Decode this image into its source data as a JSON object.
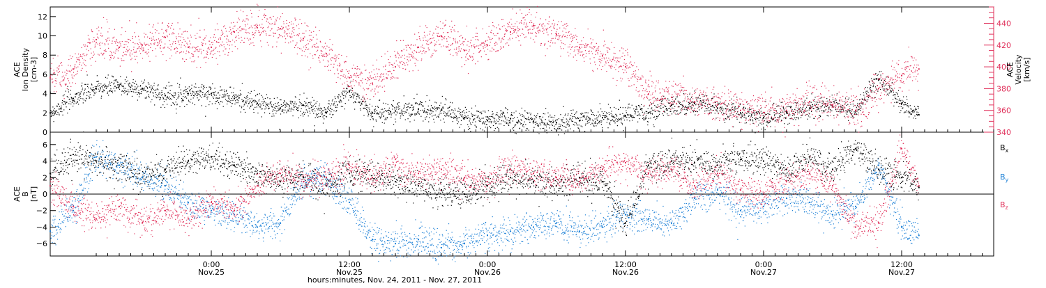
{
  "colors": {
    "black": "#000000",
    "red": "#e0305a",
    "blue": "#1a7fd6",
    "axis": "#000000"
  },
  "time_axis": {
    "start": "2011-11-24T10:00",
    "end": "2011-11-27T20:00",
    "ticks": [
      {
        "time": "2011-11-25T00:00",
        "hm": "0:00",
        "day": "Nov.25"
      },
      {
        "time": "2011-11-25T12:00",
        "hm": "12:00",
        "day": "Nov.25"
      },
      {
        "time": "2011-11-26T00:00",
        "hm": "0:00",
        "day": "Nov.26"
      },
      {
        "time": "2011-11-26T12:00",
        "hm": "12:00",
        "day": "Nov.26"
      },
      {
        "time": "2011-11-27T00:00",
        "hm": "0:00",
        "day": "Nov.27"
      },
      {
        "time": "2011-11-27T12:00",
        "hm": "12:00",
        "day": "Nov.27"
      }
    ],
    "label": "hours:minutes, Nov. 24, 2011 - Nov. 27, 2011"
  },
  "chart_data": [
    {
      "type": "scatter",
      "panel": "top",
      "ylabel_lines": [
        "ACE",
        "Ion Density",
        "[cm-3]"
      ],
      "ylim": [
        0,
        13
      ],
      "yticks": [
        0,
        2,
        4,
        6,
        8,
        10,
        12
      ],
      "y2label_lines": [
        "ACE",
        "Velocity",
        "[km/s]"
      ],
      "y2lim": [
        340,
        455
      ],
      "y2ticks": [
        340,
        360,
        380,
        400,
        420,
        440
      ],
      "series": [
        {
          "axis": "left",
          "color": "black",
          "x": [
            "2011-11-24T10:00",
            "2011-11-24T12:00",
            "2011-11-24T14:00",
            "2011-11-24T16:00",
            "2011-11-24T18:00",
            "2011-11-24T20:00",
            "2011-11-24T22:00",
            "2011-11-25T00:00",
            "2011-11-25T02:00",
            "2011-11-25T04:00",
            "2011-11-25T06:00",
            "2011-11-25T08:00",
            "2011-11-25T10:00",
            "2011-11-25T12:00",
            "2011-11-25T14:00",
            "2011-11-25T16:00",
            "2011-11-25T18:00",
            "2011-11-25T20:00",
            "2011-11-25T22:00",
            "2011-11-26T00:00",
            "2011-11-26T02:00",
            "2011-11-26T04:00",
            "2011-11-26T06:00",
            "2011-11-26T08:00",
            "2011-11-26T10:00",
            "2011-11-26T12:00",
            "2011-11-26T14:00",
            "2011-11-26T16:00",
            "2011-11-26T18:00",
            "2011-11-26T20:00",
            "2011-11-26T22:00",
            "2011-11-27T00:00",
            "2011-11-27T02:00",
            "2011-11-27T04:00",
            "2011-11-27T06:00",
            "2011-11-27T08:00",
            "2011-11-27T10:00",
            "2011-11-27T12:00",
            "2011-11-27T13:30"
          ],
          "y": [
            2.0,
            3.5,
            4.5,
            4.8,
            4.5,
            3.8,
            4.0,
            4.0,
            3.5,
            3.0,
            2.5,
            2.8,
            2.0,
            4.2,
            2.0,
            2.2,
            2.4,
            2.3,
            1.5,
            1.2,
            1.4,
            1.1,
            1.0,
            1.2,
            1.5,
            1.7,
            2.0,
            2.8,
            3.0,
            2.5,
            2.0,
            1.5,
            2.0,
            2.5,
            2.8,
            2.2,
            5.5,
            3.0,
            1.8
          ]
        },
        {
          "axis": "right",
          "color": "red",
          "x": [
            "2011-11-24T10:00",
            "2011-11-24T12:00",
            "2011-11-24T14:00",
            "2011-11-24T16:00",
            "2011-11-24T18:00",
            "2011-11-24T20:00",
            "2011-11-24T22:00",
            "2011-11-25T00:00",
            "2011-11-25T02:00",
            "2011-11-25T04:00",
            "2011-11-25T06:00",
            "2011-11-25T08:00",
            "2011-11-25T10:00",
            "2011-11-25T12:00",
            "2011-11-25T14:00",
            "2011-11-25T16:00",
            "2011-11-25T18:00",
            "2011-11-25T20:00",
            "2011-11-25T22:00",
            "2011-11-26T00:00",
            "2011-11-26T02:00",
            "2011-11-26T04:00",
            "2011-11-26T06:00",
            "2011-11-26T08:00",
            "2011-11-26T10:00",
            "2011-11-26T12:00",
            "2011-11-26T14:00",
            "2011-11-26T16:00",
            "2011-11-26T18:00",
            "2011-11-26T20:00",
            "2011-11-26T22:00",
            "2011-11-27T00:00",
            "2011-11-27T02:00",
            "2011-11-27T04:00",
            "2011-11-27T06:00",
            "2011-11-27T08:00",
            "2011-11-27T10:00",
            "2011-11-27T12:00",
            "2011-11-27T13:30"
          ],
          "y": [
            390,
            398,
            425,
            418,
            420,
            427,
            418,
            418,
            432,
            436,
            435,
            426,
            412,
            390,
            385,
            400,
            418,
            428,
            415,
            420,
            432,
            438,
            430,
            418,
            410,
            400,
            375,
            372,
            368,
            365,
            360,
            358,
            360,
            368,
            365,
            360,
            380,
            392,
            398
          ]
        }
      ]
    },
    {
      "type": "scatter",
      "panel": "bottom",
      "ylabel_lines": [
        "ACE",
        "B",
        "[nT]"
      ],
      "ylim": [
        -7.5,
        7.5
      ],
      "yticks": [
        -6,
        -4,
        -2,
        0,
        2,
        4,
        6
      ],
      "legend": [
        "Bx",
        "By",
        "Bz"
      ],
      "legend_placement": "right",
      "series": [
        {
          "name": "Bx",
          "color": "black",
          "x": [
            "2011-11-24T10:00",
            "2011-11-24T12:00",
            "2011-11-24T14:00",
            "2011-11-24T16:00",
            "2011-11-24T18:00",
            "2011-11-24T20:00",
            "2011-11-24T22:00",
            "2011-11-25T00:00",
            "2011-11-25T02:00",
            "2011-11-25T04:00",
            "2011-11-25T06:00",
            "2011-11-25T08:00",
            "2011-11-25T10:00",
            "2011-11-25T12:00",
            "2011-11-25T14:00",
            "2011-11-25T16:00",
            "2011-11-25T18:00",
            "2011-11-25T20:00",
            "2011-11-25T22:00",
            "2011-11-26T00:00",
            "2011-11-26T02:00",
            "2011-11-26T04:00",
            "2011-11-26T06:00",
            "2011-11-26T08:00",
            "2011-11-26T10:00",
            "2011-11-26T12:00",
            "2011-11-26T14:00",
            "2011-11-26T16:00",
            "2011-11-26T18:00",
            "2011-11-26T20:00",
            "2011-11-26T22:00",
            "2011-11-27T00:00",
            "2011-11-27T02:00",
            "2011-11-27T04:00",
            "2011-11-27T06:00",
            "2011-11-27T08:00",
            "2011-11-27T10:00",
            "2011-11-27T12:00",
            "2011-11-27T13:30"
          ],
          "y": [
            2.5,
            4.8,
            4.0,
            3.5,
            2.0,
            3.0,
            4.0,
            4.5,
            3.5,
            2.5,
            1.5,
            2.0,
            1.0,
            2.5,
            2.0,
            1.5,
            1.0,
            0.5,
            0.0,
            1.0,
            2.0,
            1.5,
            1.0,
            2.0,
            1.5,
            -3.5,
            3.5,
            4.0,
            3.8,
            3.5,
            4.2,
            4.0,
            3.0,
            4.5,
            3.0,
            5.5,
            3.0,
            2.0,
            0.8
          ]
        },
        {
          "name": "By",
          "color": "blue",
          "x": [
            "2011-11-24T10:00",
            "2011-11-24T12:00",
            "2011-11-24T14:00",
            "2011-11-24T16:00",
            "2011-11-24T18:00",
            "2011-11-24T20:00",
            "2011-11-24T22:00",
            "2011-11-25T00:00",
            "2011-11-25T02:00",
            "2011-11-25T04:00",
            "2011-11-25T06:00",
            "2011-11-25T08:00",
            "2011-11-25T10:00",
            "2011-11-25T12:00",
            "2011-11-25T14:00",
            "2011-11-25T16:00",
            "2011-11-25T18:00",
            "2011-11-25T20:00",
            "2011-11-25T22:00",
            "2011-11-26T00:00",
            "2011-11-26T02:00",
            "2011-11-26T04:00",
            "2011-11-26T06:00",
            "2011-11-26T08:00",
            "2011-11-26T10:00",
            "2011-11-26T12:00",
            "2011-11-26T14:00",
            "2011-11-26T16:00",
            "2011-11-26T18:00",
            "2011-11-26T20:00",
            "2011-11-26T22:00",
            "2011-11-27T00:00",
            "2011-11-27T02:00",
            "2011-11-27T04:00",
            "2011-11-27T06:00",
            "2011-11-27T08:00",
            "2011-11-27T10:00",
            "2011-11-27T12:00",
            "2011-11-27T13:30"
          ],
          "y": [
            -4.5,
            -2.0,
            4.5,
            3.5,
            2.0,
            1.0,
            -1.0,
            -2.0,
            -2.5,
            -4.0,
            -3.5,
            1.5,
            2.0,
            -1.0,
            -5.5,
            -6.0,
            -5.5,
            -6.5,
            -6.0,
            -5.0,
            -4.5,
            -4.0,
            -3.5,
            -4.5,
            -4.0,
            -2.5,
            -3.0,
            -3.5,
            -0.5,
            0.5,
            -2.0,
            -1.5,
            -0.5,
            -1.0,
            -2.5,
            -1.5,
            3.5,
            -4.0,
            -5.0
          ]
        },
        {
          "name": "Bz",
          "color": "red",
          "x": [
            "2011-11-24T10:00",
            "2011-11-24T12:00",
            "2011-11-24T14:00",
            "2011-11-24T16:00",
            "2011-11-24T18:00",
            "2011-11-24T20:00",
            "2011-11-24T22:00",
            "2011-11-25T00:00",
            "2011-11-25T02:00",
            "2011-11-25T04:00",
            "2011-11-25T06:00",
            "2011-11-25T08:00",
            "2011-11-25T10:00",
            "2011-11-25T12:00",
            "2011-11-25T14:00",
            "2011-11-25T16:00",
            "2011-11-25T18:00",
            "2011-11-25T20:00",
            "2011-11-25T22:00",
            "2011-11-26T00:00",
            "2011-11-26T02:00",
            "2011-11-26T04:00",
            "2011-11-26T06:00",
            "2011-11-26T08:00",
            "2011-11-26T10:00",
            "2011-11-26T12:00",
            "2011-11-26T14:00",
            "2011-11-26T16:00",
            "2011-11-26T18:00",
            "2011-11-26T20:00",
            "2011-11-26T22:00",
            "2011-11-27T00:00",
            "2011-11-27T02:00",
            "2011-11-27T04:00",
            "2011-11-27T06:00",
            "2011-11-27T08:00",
            "2011-11-27T10:00",
            "2011-11-27T12:00",
            "2011-11-27T13:30"
          ],
          "y": [
            1.0,
            -1.5,
            -3.0,
            -1.5,
            -3.5,
            -2.0,
            -3.0,
            -1.0,
            -2.0,
            1.0,
            2.5,
            1.5,
            2.0,
            3.5,
            2.0,
            3.5,
            2.5,
            3.0,
            2.0,
            1.5,
            3.0,
            2.5,
            2.0,
            1.5,
            3.0,
            3.8,
            2.5,
            3.0,
            1.0,
            2.5,
            0.5,
            0.0,
            1.5,
            2.5,
            1.0,
            -4.0,
            -3.5,
            5.5,
            1.0
          ]
        }
      ]
    }
  ]
}
